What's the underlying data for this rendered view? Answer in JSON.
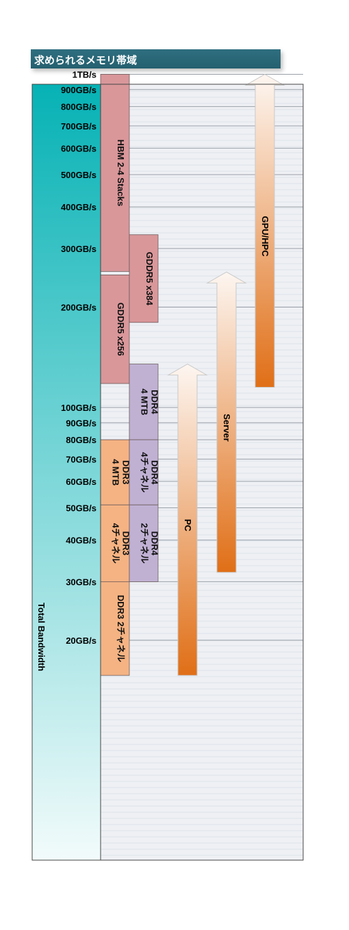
{
  "title": "求められるメモリ帯域",
  "chart_data": {
    "type": "bar",
    "scale": "log",
    "ylabel": "Total Bandwidth",
    "ticks": [
      {
        "label": "1TB/s",
        "value": 1000
      },
      {
        "label": "900GB/s",
        "value": 900
      },
      {
        "label": "800GB/s",
        "value": 800
      },
      {
        "label": "700GB/s",
        "value": 700
      },
      {
        "label": "600GB/s",
        "value": 600
      },
      {
        "label": "500GB/s",
        "value": 500
      },
      {
        "label": "400GB/s",
        "value": 400
      },
      {
        "label": "300GB/s",
        "value": 300
      },
      {
        "label": "200GB/s",
        "value": 200
      },
      {
        "label": "100GB/s",
        "value": 100
      },
      {
        "label": "90GB/s",
        "value": 90
      },
      {
        "label": "80GB/s",
        "value": 80
      },
      {
        "label": "70GB/s",
        "value": 70
      },
      {
        "label": "60GB/s",
        "value": 60
      },
      {
        "label": "50GB/s",
        "value": 50
      },
      {
        "label": "40GB/s",
        "value": 40
      },
      {
        "label": "30GB/s",
        "value": 30
      },
      {
        "label": "20GB/s",
        "value": 20
      }
    ],
    "memory_ranges": [
      {
        "name": "HBM 2-4 Stacks",
        "lines": [
          "HBM 2-4 Stacks"
        ],
        "low": 256,
        "high": 1000,
        "column": 0,
        "color": "#d9979a"
      },
      {
        "name": "GDDR5 x256",
        "lines": [
          "GDDR5 x256"
        ],
        "low": 118,
        "high": 250,
        "column": 0,
        "color": "#d9979a"
      },
      {
        "name": "DDR3 4 MTB",
        "lines": [
          "DDR3",
          "4 MTB"
        ],
        "low": 51,
        "high": 80,
        "column": 0,
        "color": "#f5b383"
      },
      {
        "name": "DDR3 4チャネル",
        "lines": [
          "DDR3",
          "4チャネル"
        ],
        "low": 30,
        "high": 51,
        "column": 0,
        "color": "#f5b383"
      },
      {
        "name": "DDR3 2チャネル",
        "lines": [
          "DDR3 2チャネル"
        ],
        "low": 15.7,
        "high": 30,
        "column": 0,
        "color": "#f5b383"
      },
      {
        "name": "GDDR5 x384",
        "lines": [
          "GDDR5 x384"
        ],
        "low": 180,
        "high": 330,
        "column": 1,
        "color": "#d9979a"
      },
      {
        "name": "DDR4 4 MTB",
        "lines": [
          "DDR4",
          "4 MTB"
        ],
        "low": 80,
        "high": 135,
        "column": 1,
        "color": "#c0b1d3"
      },
      {
        "name": "DDR4 4チャネル",
        "lines": [
          "DDR4",
          "4チャネル"
        ],
        "low": 51,
        "high": 80,
        "column": 1,
        "color": "#c0b1d3"
      },
      {
        "name": "DDR4 2チャネル",
        "lines": [
          "DDR4",
          "2チャネル"
        ],
        "low": 30,
        "high": 51,
        "column": 1,
        "color": "#c0b1d3"
      }
    ],
    "requirement_arrows": [
      {
        "name": "PC",
        "low": 15.7,
        "high": 135
      },
      {
        "name": "Server",
        "low": 32,
        "high": 255
      },
      {
        "name": "GPU/HPC",
        "low": 115,
        "high": 1000
      }
    ],
    "colors": {
      "axis_gradient_top": "#06b2b5",
      "axis_gradient_bottom": "#f2fbfb",
      "arrow_top": "#fdf6f1",
      "arrow_bottom": "#e06f17",
      "plot_background": "#eef0f4"
    }
  }
}
